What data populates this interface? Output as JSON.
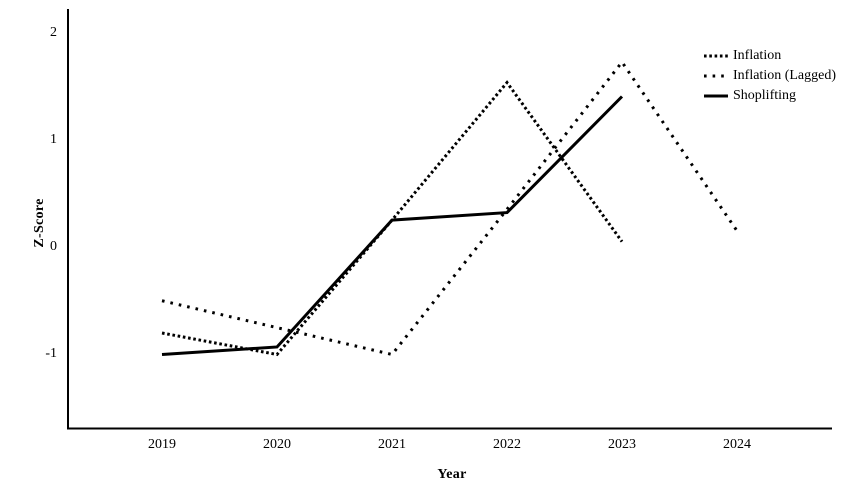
{
  "chart_data": {
    "type": "line",
    "title": "",
    "xlabel": "Year",
    "ylabel": "Z-Score",
    "x": [
      2019,
      2020,
      2021,
      2022,
      2023,
      2024
    ],
    "ylim": [
      -1.7,
      2.2
    ],
    "yticks": [
      2,
      1,
      0,
      -1
    ],
    "grid": false,
    "legend_position": "top-right",
    "line_color": "#000000",
    "background_color": "#ffffff",
    "series": [
      {
        "name": "Inflation",
        "style": "dotted-dense",
        "values": [
          -0.8,
          -1.0,
          0.25,
          1.53,
          0.05,
          null
        ]
      },
      {
        "name": "Inflation (Lagged)",
        "style": "dotted-sparse",
        "values": [
          -0.5,
          -0.75,
          -1.0,
          0.35,
          1.72,
          0.15
        ]
      },
      {
        "name": "Shoplifting",
        "style": "solid",
        "values": [
          -1.0,
          -0.93,
          0.25,
          0.32,
          1.4,
          null
        ]
      }
    ]
  },
  "axes": {
    "y_ticks": [
      "2",
      "1",
      "0",
      "-1"
    ],
    "x_ticks": [
      "2019",
      "2020",
      "2021",
      "2022",
      "2023",
      "2024"
    ],
    "ylabel": "Z-Score",
    "xlabel": "Year"
  },
  "legend": {
    "items": [
      "Inflation",
      "Inflation (Lagged)",
      "Shoplifting"
    ]
  }
}
